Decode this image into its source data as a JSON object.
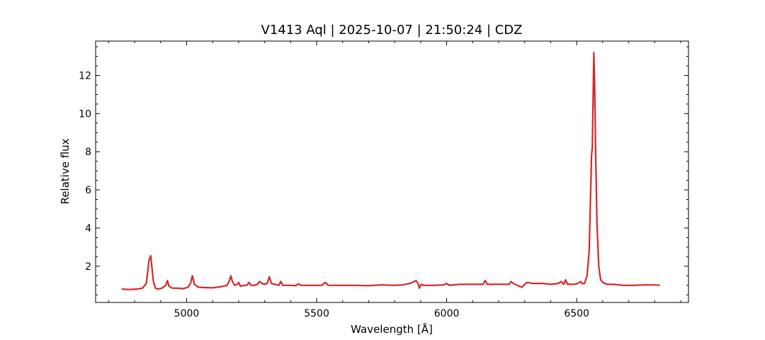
{
  "chart_data": {
    "type": "line",
    "title": "V1413 Aql | 2025-10-07 | 21:50:24 | CDZ",
    "xlabel": "Wavelength [Å]",
    "ylabel": "Relative flux",
    "xlim": [
      4650,
      6930
    ],
    "ylim": [
      0.1,
      13.8
    ],
    "xticks": [
      5000,
      5500,
      6000,
      6500
    ],
    "yticks": [
      2,
      4,
      6,
      8,
      10,
      12
    ],
    "xtick_labels": [
      "5000",
      "5500",
      "6000",
      "6500"
    ],
    "ytick_labels": [
      "2",
      "4",
      "6",
      "8",
      "10",
      "12"
    ],
    "grid": false,
    "series": [
      {
        "color": "#d62728",
        "x": [
          4750,
          4780,
          4810,
          4830,
          4845,
          4855,
          4862,
          4866,
          4872,
          4880,
          4890,
          4905,
          4920,
          4926,
          4932,
          4945,
          4965,
          4985,
          5005,
          5015,
          5022,
          5030,
          5045,
          5070,
          5100,
          5130,
          5155,
          5165,
          5170,
          5176,
          5185,
          5195,
          5200,
          5207,
          5220,
          5232,
          5240,
          5248,
          5260,
          5272,
          5280,
          5290,
          5300,
          5310,
          5318,
          5326,
          5340,
          5355,
          5362,
          5370,
          5400,
          5420,
          5430,
          5440,
          5480,
          5520,
          5533,
          5545,
          5600,
          5650,
          5700,
          5750,
          5800,
          5830,
          5860,
          5875,
          5882,
          5890,
          5895,
          5902,
          5910,
          5950,
          5990,
          6000,
          6010,
          6050,
          6100,
          6140,
          6148,
          6156,
          6200,
          6240,
          6248,
          6256,
          6280,
          6290,
          6300,
          6310,
          6330,
          6370,
          6400,
          6430,
          6440,
          6450,
          6457,
          6465,
          6490,
          6505,
          6515,
          6522,
          6530,
          6540,
          6548,
          6553,
          6557,
          6560,
          6563,
          6566,
          6569,
          6573,
          6578,
          6585,
          6592,
          6600,
          6615,
          6640,
          6680,
          6720,
          6760,
          6800,
          6820
        ],
        "values": [
          0.8,
          0.78,
          0.8,
          0.85,
          1.1,
          2.3,
          2.55,
          2.0,
          1.2,
          0.85,
          0.8,
          0.85,
          1.0,
          1.25,
          0.95,
          0.85,
          0.85,
          0.82,
          0.9,
          1.1,
          1.5,
          1.05,
          0.9,
          0.88,
          0.87,
          0.92,
          1.0,
          1.25,
          1.5,
          1.2,
          1.0,
          1.05,
          1.15,
          0.95,
          1.0,
          1.0,
          1.15,
          1.0,
          1.0,
          1.05,
          1.2,
          1.1,
          1.05,
          1.1,
          1.45,
          1.1,
          1.05,
          1.0,
          1.2,
          1.0,
          1.0,
          0.98,
          1.08,
          1.0,
          1.0,
          1.0,
          1.15,
          1.0,
          1.0,
          1.0,
          0.98,
          1.02,
          1.0,
          1.02,
          1.1,
          1.2,
          1.25,
          1.1,
          0.85,
          1.05,
          1.0,
          1.0,
          1.02,
          1.1,
          1.0,
          1.05,
          1.05,
          1.05,
          1.25,
          1.05,
          1.05,
          1.05,
          1.2,
          1.1,
          0.95,
          0.9,
          1.05,
          1.15,
          1.1,
          1.1,
          1.05,
          1.1,
          1.2,
          1.05,
          1.28,
          1.05,
          1.05,
          1.1,
          1.2,
          1.08,
          1.1,
          1.5,
          2.8,
          5.5,
          7.8,
          8.2,
          10.8,
          13.2,
          11.5,
          8.0,
          4.2,
          2.0,
          1.3,
          1.15,
          1.05,
          1.05,
          1.0,
          1.0,
          1.02,
          1.02,
          1.0
        ]
      }
    ]
  }
}
